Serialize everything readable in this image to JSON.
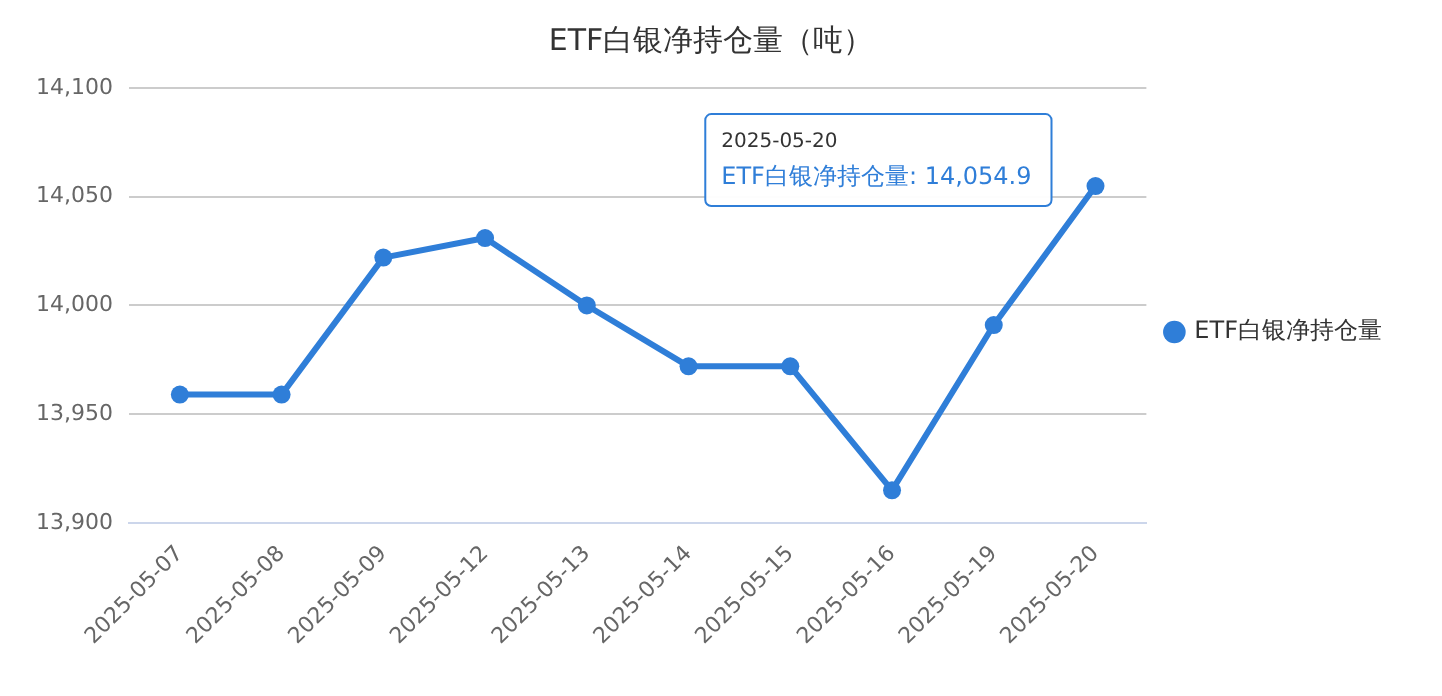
{
  "chart_data": {
    "type": "line",
    "title": "ETF白银净持仓量（吨）",
    "categories": [
      "2025-05-07",
      "2025-05-08",
      "2025-05-09",
      "2025-05-12",
      "2025-05-13",
      "2025-05-14",
      "2025-05-15",
      "2025-05-16",
      "2025-05-19",
      "2025-05-20"
    ],
    "series": [
      {
        "name": "ETF白银净持仓量",
        "color": "#2f7ed8",
        "values": [
          13959,
          13959,
          14022,
          14031,
          14000,
          13972,
          13972,
          13915,
          13991,
          14054.9
        ]
      }
    ],
    "ylim": [
      13900,
      14100
    ],
    "yticks": [
      {
        "value": 13900,
        "label": "13,900"
      },
      {
        "value": 13950,
        "label": "13,950"
      },
      {
        "value": 14000,
        "label": "14,000"
      },
      {
        "value": 14050,
        "label": "14,050"
      },
      {
        "value": 14100,
        "label": "14,100"
      }
    ],
    "grid": "y",
    "legend": "right",
    "marker": "circle",
    "line_style": "solid",
    "annotations": [
      "2025-05-20",
      "ETF白银净持仓量: 14,054.9"
    ]
  }
}
